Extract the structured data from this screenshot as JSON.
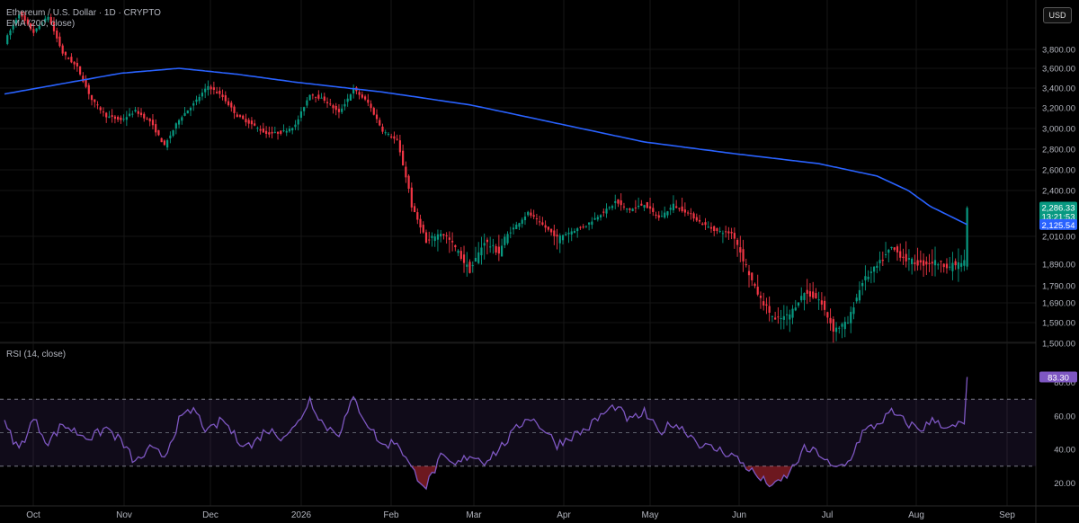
{
  "header": {
    "symbol_line": "Ethereum / U.S. Dollar · 1D · CRYPTO",
    "ema_label": "EMA (200, close)",
    "currency": "USD"
  },
  "rsi_panel": {
    "label": "RSI (14, close)"
  },
  "chart_data": [
    {
      "type": "candlestick",
      "title": "Ethereum / U.S. Dollar · 1D · CRYPTO",
      "ylim": [
        1430,
        4000
      ],
      "y_ticks": [
        "3,800.00",
        "3,600.00",
        "3,400.00",
        "3,200.00",
        "3,000.00",
        "2,800.00",
        "2,600.00",
        "2,400.00",
        "2,010.00",
        "1,890.00",
        "1,790.00",
        "1,690.00",
        "1,590.00",
        "1,500.00"
      ],
      "y_tick_values": [
        3800,
        3600,
        3400,
        3200,
        3000,
        2800,
        2600,
        2400,
        2010,
        1890,
        1790,
        1690,
        1590,
        1500
      ],
      "x_ticks": [
        "Oct",
        "Nov",
        "Dec",
        "2026",
        "Feb",
        "Mar",
        "Apr",
        "May",
        "Jun",
        "Jul",
        "Aug",
        "Sep"
      ],
      "close_anchors": [
        [
          0,
          3880
        ],
        [
          5,
          4180
        ],
        [
          10,
          3980
        ],
        [
          15,
          4150
        ],
        [
          20,
          3760
        ],
        [
          25,
          3610
        ],
        [
          30,
          3280
        ],
        [
          35,
          3120
        ],
        [
          40,
          3080
        ],
        [
          45,
          3170
        ],
        [
          50,
          3070
        ],
        [
          55,
          2830
        ],
        [
          60,
          3090
        ],
        [
          65,
          3240
        ],
        [
          70,
          3420
        ],
        [
          75,
          3310
        ],
        [
          80,
          3120
        ],
        [
          85,
          3040
        ],
        [
          90,
          2950
        ],
        [
          95,
          2960
        ],
        [
          100,
          3030
        ],
        [
          105,
          3340
        ],
        [
          110,
          3280
        ],
        [
          115,
          3150
        ],
        [
          120,
          3390
        ],
        [
          125,
          3250
        ],
        [
          130,
          2980
        ],
        [
          135,
          2880
        ],
        [
          140,
          2300
        ],
        [
          145,
          1980
        ],
        [
          150,
          2040
        ],
        [
          155,
          1960
        ],
        [
          160,
          1860
        ],
        [
          165,
          1990
        ],
        [
          170,
          1940
        ],
        [
          175,
          2090
        ],
        [
          180,
          2240
        ],
        [
          185,
          2120
        ],
        [
          190,
          2000
        ],
        [
          195,
          2060
        ],
        [
          200,
          2120
        ],
        [
          205,
          2230
        ],
        [
          210,
          2330
        ],
        [
          215,
          2270
        ],
        [
          220,
          2320
        ],
        [
          225,
          2190
        ],
        [
          230,
          2310
        ],
        [
          235,
          2240
        ],
        [
          240,
          2130
        ],
        [
          245,
          2060
        ],
        [
          250,
          2040
        ],
        [
          255,
          1880
        ],
        [
          260,
          1710
        ],
        [
          265,
          1600
        ],
        [
          270,
          1630
        ],
        [
          275,
          1750
        ],
        [
          280,
          1710
        ],
        [
          285,
          1560
        ],
        [
          290,
          1590
        ],
        [
          295,
          1810
        ],
        [
          300,
          1880
        ],
        [
          305,
          1960
        ],
        [
          310,
          1910
        ],
        [
          315,
          1890
        ],
        [
          320,
          1900
        ],
        [
          325,
          1880
        ],
        [
          330,
          1900
        ],
        [
          331,
          2286.33
        ]
      ],
      "series": [
        {
          "name": "ETH/USD",
          "last_value": "2,286.33",
          "countdown": "13:21:53",
          "up_color": "#089981",
          "down_color": "#f23645"
        },
        {
          "name": "EMA (200, close)",
          "last_value": "2,125.54",
          "color": "#2962ff",
          "anchors": [
            [
              0,
              3340
            ],
            [
              40,
              3550
            ],
            [
              60,
              3600
            ],
            [
              80,
              3540
            ],
            [
              100,
              3460
            ],
            [
              130,
              3360
            ],
            [
              160,
              3230
            ],
            [
              190,
              3050
            ],
            [
              220,
              2870
            ],
            [
              250,
              2760
            ],
            [
              280,
              2660
            ],
            [
              300,
              2540
            ],
            [
              320,
              2280
            ],
            [
              331,
              2125.54
            ]
          ]
        }
      ]
    },
    {
      "type": "line",
      "title": "RSI (14, close)",
      "ylim": [
        10,
        90
      ],
      "y_ticks": [
        "80.00",
        "60.00",
        "40.00",
        "20.00"
      ],
      "y_tick_values": [
        80,
        60,
        40,
        20
      ],
      "band": [
        30,
        70
      ],
      "midline": 50,
      "series": [
        {
          "name": "RSI (14, close)",
          "color": "#7e57c2",
          "last_value": "83.30",
          "anchors": [
            [
              0,
              55
            ],
            [
              5,
              40
            ],
            [
              10,
              58
            ],
            [
              15,
              44
            ],
            [
              20,
              55
            ],
            [
              25,
              50
            ],
            [
              30,
              47
            ],
            [
              35,
              53
            ],
            [
              40,
              45
            ],
            [
              45,
              32
            ],
            [
              50,
              40
            ],
            [
              55,
              36
            ],
            [
              60,
              57
            ],
            [
              65,
              64
            ],
            [
              70,
              50
            ],
            [
              75,
              58
            ],
            [
              80,
              46
            ],
            [
              85,
              42
            ],
            [
              90,
              52
            ],
            [
              95,
              48
            ],
            [
              100,
              53
            ],
            [
              105,
              70
            ],
            [
              110,
              54
            ],
            [
              115,
              50
            ],
            [
              120,
              70
            ],
            [
              125,
              55
            ],
            [
              130,
              42
            ],
            [
              135,
              45
            ],
            [
              140,
              28
            ],
            [
              145,
              18
            ],
            [
              150,
              35
            ],
            [
              155,
              30
            ],
            [
              160,
              37
            ],
            [
              165,
              33
            ],
            [
              170,
              40
            ],
            [
              175,
              50
            ],
            [
              180,
              60
            ],
            [
              185,
              53
            ],
            [
              190,
              43
            ],
            [
              195,
              48
            ],
            [
              200,
              52
            ],
            [
              205,
              60
            ],
            [
              210,
              66
            ],
            [
              215,
              57
            ],
            [
              220,
              62
            ],
            [
              225,
              50
            ],
            [
              230,
              56
            ],
            [
              235,
              50
            ],
            [
              240,
              42
            ],
            [
              245,
              40
            ],
            [
              250,
              37
            ],
            [
              255,
              30
            ],
            [
              260,
              22
            ],
            [
              265,
              18
            ],
            [
              270,
              26
            ],
            [
              275,
              40
            ],
            [
              280,
              38
            ],
            [
              285,
              28
            ],
            [
              290,
              32
            ],
            [
              295,
              50
            ],
            [
              300,
              55
            ],
            [
              305,
              62
            ],
            [
              310,
              56
            ],
            [
              315,
              52
            ],
            [
              320,
              58
            ],
            [
              325,
              52
            ],
            [
              330,
              56
            ],
            [
              331,
              83.3
            ]
          ]
        }
      ]
    }
  ]
}
